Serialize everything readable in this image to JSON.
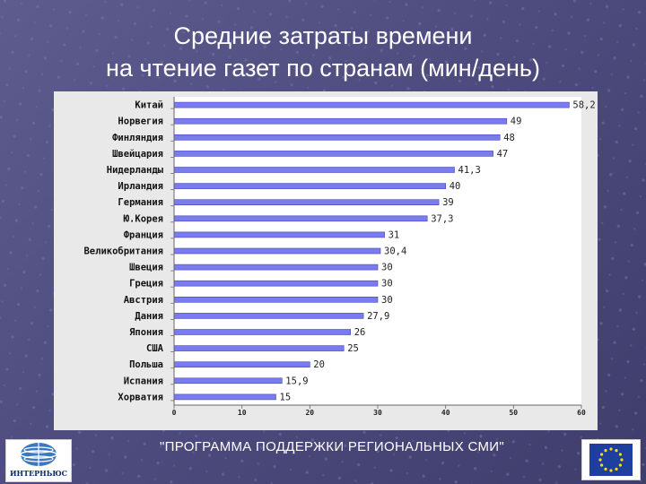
{
  "title_line1": "Средние затраты времени",
  "title_line2": "на чтение газет по странам (мин/день)",
  "footer": {
    "caption": "\"ПРОГРАММА ПОДДЕРЖКИ РЕГИОНАЛЬНЫХ СМИ\"",
    "logo_text": "ИНТЕРНЬЮС"
  },
  "colors": {
    "bar": "#7b7bf0",
    "bar_edge": "#4444bb",
    "panel": "#e9e9e9",
    "plot_bg": "#ffffff"
  },
  "chart_data": {
    "type": "bar",
    "orientation": "horizontal",
    "title": "",
    "xlabel": "",
    "ylabel": "",
    "categories": [
      "Китай",
      "Норвегия",
      "Финляндия",
      "Швейцария",
      "Нидерланды",
      "Ирландия",
      "Германия",
      "Ю.Корея",
      "Франция",
      "Великобритания",
      "Швеция",
      "Греция",
      "Австрия",
      "Дания",
      "Япония",
      "США",
      "Польша",
      "Испания",
      "Хорватия"
    ],
    "values": [
      58.2,
      49,
      48,
      47,
      41.3,
      40,
      39,
      37.3,
      31,
      30.4,
      30,
      30,
      30,
      27.9,
      26,
      25,
      20,
      15.9,
      15
    ],
    "value_labels": [
      "58,2",
      "49",
      "48",
      "47",
      "41,3",
      "40",
      "39",
      "37,3",
      "31",
      "30,4",
      "30",
      "30",
      "30",
      "27,9",
      "26",
      "25",
      "20",
      "15,9",
      "15"
    ],
    "xlim": [
      0,
      60
    ],
    "xticks": [
      0,
      10,
      20,
      30,
      40,
      50,
      60
    ],
    "grid": false,
    "legend": "none"
  }
}
